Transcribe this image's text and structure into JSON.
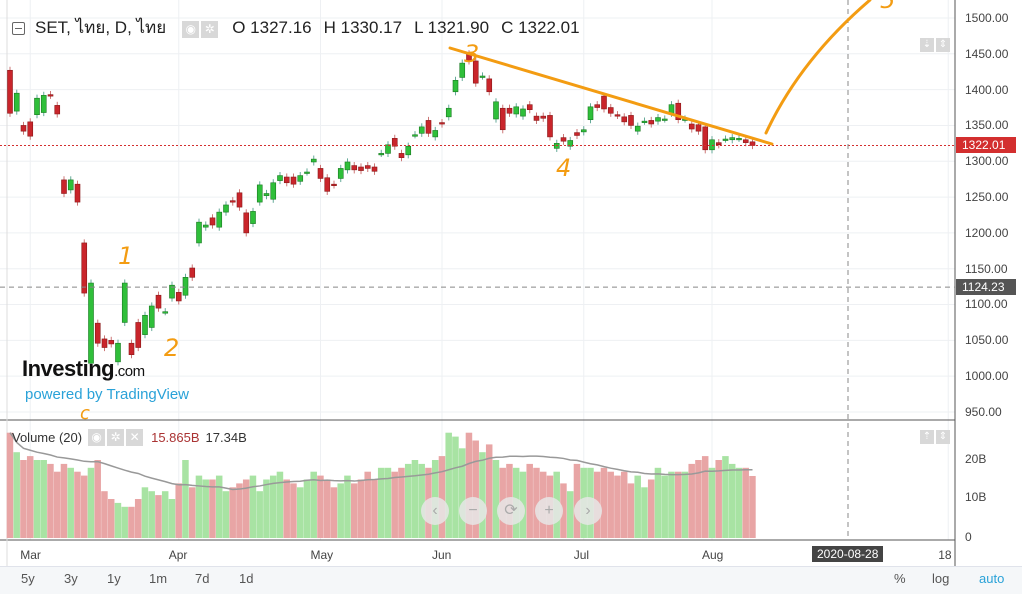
{
  "header": {
    "symbol": "SET, ไทย, D, ไทย",
    "open": "O 1327.16",
    "high": "H 1330.17",
    "low": "L 1321.90",
    "close": "C 1322.01"
  },
  "volume_header": {
    "label": "Volume (20)",
    "value": "15.865B",
    "ma_value": "17.34B"
  },
  "price_axis": [
    "1500.00",
    "1450.00",
    "1400.00",
    "1350.00",
    "1300.00",
    "1250.00",
    "1200.00",
    "1150.00",
    "1100.00",
    "1050.00",
    "1000.00",
    "950.00"
  ],
  "price_labels": {
    "last": "1322.01",
    "crosshair": "1124.23"
  },
  "volume_axis": [
    "20B",
    "10B",
    "0"
  ],
  "date_axis": [
    {
      "label": "Mar",
      "i": 3
    },
    {
      "label": "Apr",
      "i": 25
    },
    {
      "label": "May",
      "i": 46
    },
    {
      "label": "Jun",
      "i": 64
    },
    {
      "label": "Jul",
      "i": 85
    },
    {
      "label": "Aug",
      "i": 104
    },
    {
      "label": "18",
      "i": 139
    }
  ],
  "crosshair": {
    "date": "2020-08-28",
    "i": 124,
    "price": 1124.23
  },
  "toolbar": {
    "ranges": [
      "5y",
      "3y",
      "1y",
      "1m",
      "7d",
      "1d"
    ],
    "percent": "%",
    "log": "log",
    "auto": "auto"
  },
  "nav_buttons": [
    "‹",
    "−",
    "⟳",
    "+",
    "›"
  ],
  "branding": {
    "logo": "Investing",
    "logo_suffix": ".com",
    "powered": "powered by TradingView"
  },
  "annotations": [
    "1",
    "2",
    "3",
    "4",
    "5",
    "c"
  ],
  "colors": {
    "up": "#2fbf3a",
    "down": "#c9252b",
    "vol_up": "#a8e3a3",
    "vol_down": "#e8a5a5",
    "trend": "#f39c12",
    "accent": "#2aa2d8"
  },
  "chart_data": {
    "type": "candlestick",
    "ylim": [
      950,
      1500
    ],
    "candles_oc": [
      [
        1427,
        1367
      ],
      [
        1370,
        1395
      ],
      [
        1350,
        1342
      ],
      [
        1355,
        1335
      ],
      [
        1365,
        1388
      ],
      [
        1368,
        1392
      ],
      [
        1393,
        1392
      ],
      [
        1378,
        1366
      ],
      [
        1274,
        1255
      ],
      [
        1260,
        1274
      ],
      [
        1268,
        1243
      ],
      [
        1186,
        1116
      ],
      [
        1018,
        1130
      ],
      [
        1074,
        1046
      ],
      [
        1052,
        1040
      ],
      [
        1050,
        1045
      ],
      [
        1020,
        1046
      ],
      [
        1075,
        1130
      ],
      [
        1046,
        1030
      ],
      [
        1075,
        1040
      ],
      [
        1058,
        1085
      ],
      [
        1068,
        1098
      ],
      [
        1113,
        1095
      ],
      [
        1090,
        1090
      ],
      [
        1109,
        1127
      ],
      [
        1117,
        1105
      ],
      [
        1113,
        1138
      ],
      [
        1151,
        1138
      ],
      [
        1186,
        1215
      ],
      [
        1208,
        1211
      ],
      [
        1221,
        1211
      ],
      [
        1208,
        1229
      ],
      [
        1229,
        1239
      ],
      [
        1245,
        1243
      ],
      [
        1256,
        1236
      ],
      [
        1228,
        1200
      ],
      [
        1213,
        1230
      ],
      [
        1243,
        1267
      ],
      [
        1252,
        1255
      ],
      [
        1247,
        1270
      ],
      [
        1273,
        1280
      ],
      [
        1278,
        1270
      ],
      [
        1278,
        1268
      ],
      [
        1272,
        1280
      ],
      [
        1285,
        1285
      ],
      [
        1299,
        1303
      ],
      [
        1290,
        1276
      ],
      [
        1277,
        1258
      ],
      [
        1268,
        1267
      ],
      [
        1276,
        1290
      ],
      [
        1288,
        1299
      ],
      [
        1294,
        1288
      ],
      [
        1292,
        1287
      ],
      [
        1294,
        1290
      ],
      [
        1292,
        1286
      ],
      [
        1311,
        1311
      ],
      [
        1311,
        1323
      ],
      [
        1332,
        1321
      ],
      [
        1311,
        1305
      ],
      [
        1309,
        1321
      ],
      [
        1337,
        1337
      ],
      [
        1339,
        1348
      ],
      [
        1357,
        1339
      ],
      [
        1334,
        1343
      ],
      [
        1354,
        1352
      ],
      [
        1362,
        1374
      ],
      [
        1397,
        1413
      ],
      [
        1417,
        1437
      ],
      [
        1450,
        1440
      ],
      [
        1440,
        1409
      ],
      [
        1419,
        1419
      ],
      [
        1415,
        1397
      ],
      [
        1359,
        1383
      ],
      [
        1374,
        1344
      ],
      [
        1374,
        1367
      ],
      [
        1366,
        1376
      ],
      [
        1363,
        1373
      ],
      [
        1379,
        1372
      ],
      [
        1363,
        1357
      ],
      [
        1363,
        1360
      ],
      [
        1364,
        1334
      ],
      [
        1318,
        1325
      ],
      [
        1333,
        1328
      ],
      [
        1321,
        1329
      ],
      [
        1340,
        1336
      ],
      [
        1341,
        1344
      ],
      [
        1358,
        1376
      ],
      [
        1379,
        1375
      ],
      [
        1391,
        1373
      ],
      [
        1375,
        1367
      ],
      [
        1365,
        1364
      ],
      [
        1362,
        1355
      ],
      [
        1364,
        1350
      ],
      [
        1342,
        1349
      ],
      [
        1356,
        1356
      ],
      [
        1357,
        1352
      ],
      [
        1356,
        1361
      ],
      [
        1359,
        1359
      ],
      [
        1367,
        1379
      ],
      [
        1381,
        1358
      ],
      [
        1359,
        1359
      ],
      [
        1352,
        1345
      ],
      [
        1351,
        1342
      ],
      [
        1348,
        1316
      ],
      [
        1316,
        1330
      ],
      [
        1326,
        1323
      ],
      [
        1331,
        1331
      ],
      [
        1330,
        1333
      ],
      [
        1332,
        1332
      ],
      [
        1330,
        1326
      ],
      [
        1327.16,
        1322.01
      ]
    ],
    "volumes_B": [
      27,
      22,
      20,
      21,
      20,
      20,
      19,
      17,
      19,
      18,
      17,
      16,
      18,
      20,
      12,
      10,
      9,
      8,
      8,
      10,
      13,
      12,
      11,
      12,
      10,
      14,
      20,
      13,
      16,
      15,
      15,
      16,
      12,
      13,
      14,
      15,
      16,
      12,
      15,
      16,
      17,
      15,
      14,
      13,
      15,
      17,
      16,
      15,
      13,
      14,
      16,
      14,
      15,
      17,
      15,
      18,
      18,
      17,
      18,
      19,
      20,
      19,
      18,
      20,
      21,
      27,
      26,
      23,
      27,
      25,
      22,
      24,
      20,
      18,
      19,
      18,
      17,
      19,
      18,
      17,
      16,
      17,
      14,
      12,
      19,
      18,
      18,
      17,
      18,
      17,
      16,
      17,
      14,
      16,
      13,
      15,
      18,
      16,
      17,
      17,
      17,
      19,
      20,
      21,
      18,
      20,
      21,
      19,
      18,
      18,
      15.9
    ],
    "volume_ma_period": 20
  }
}
